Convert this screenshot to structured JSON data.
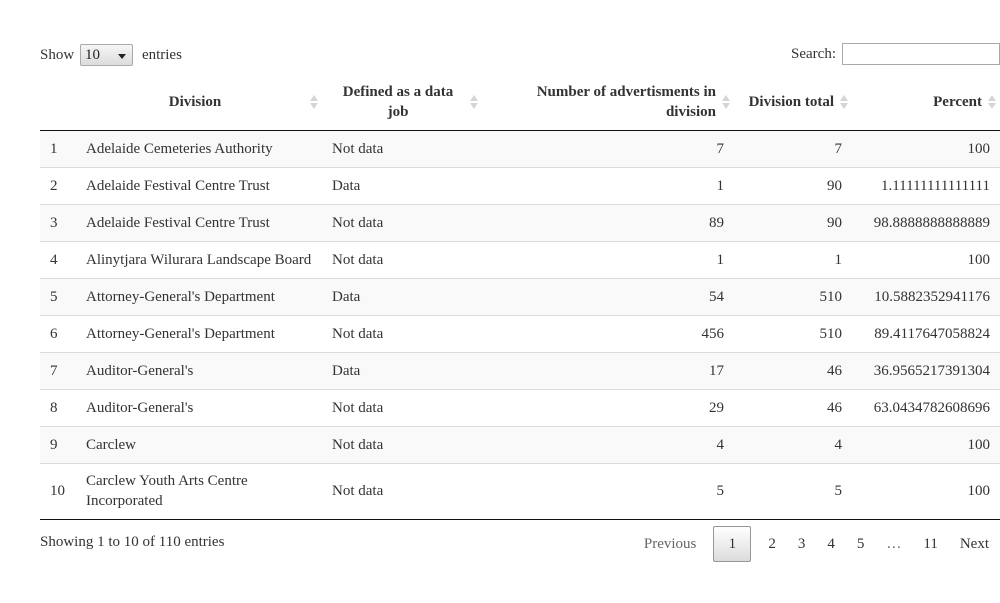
{
  "length_menu": {
    "prefix": "Show",
    "value": "10",
    "suffix": "entries"
  },
  "search": {
    "label": "Search:",
    "value": ""
  },
  "columns": [
    {
      "label": "",
      "align": "c"
    },
    {
      "label": "Division",
      "align": "c"
    },
    {
      "label": "Defined as a data job",
      "align": "c"
    },
    {
      "label": "Number of advertisments in division",
      "align": "r"
    },
    {
      "label": "Division total",
      "align": "r"
    },
    {
      "label": "Percent",
      "align": "r"
    }
  ],
  "rows": [
    [
      "1",
      "Adelaide Cemeteries Authority",
      "Not data",
      "7",
      "7",
      "100"
    ],
    [
      "2",
      "Adelaide Festival Centre Trust",
      "Data",
      "1",
      "90",
      "1.11111111111111"
    ],
    [
      "3",
      "Adelaide Festival Centre Trust",
      "Not data",
      "89",
      "90",
      "98.8888888888889"
    ],
    [
      "4",
      "Alinytjara Wilurara Landscape Board",
      "Not data",
      "1",
      "1",
      "100"
    ],
    [
      "5",
      "Attorney-General's Department",
      "Data",
      "54",
      "510",
      "10.5882352941176"
    ],
    [
      "6",
      "Attorney-General's Department",
      "Not data",
      "456",
      "510",
      "89.4117647058824"
    ],
    [
      "7",
      "Auditor-General's",
      "Data",
      "17",
      "46",
      "36.9565217391304"
    ],
    [
      "8",
      "Auditor-General's",
      "Not data",
      "29",
      "46",
      "63.0434782608696"
    ],
    [
      "9",
      "Carclew",
      "Not data",
      "4",
      "4",
      "100"
    ],
    [
      "10",
      "Carclew Youth Arts Centre Incorporated",
      "Not data",
      "5",
      "5",
      "100"
    ]
  ],
  "info": "Showing 1 to 10 of 110 entries",
  "pagination": {
    "previous": "Previous",
    "pages": [
      "1",
      "2",
      "3",
      "4",
      "5"
    ],
    "ellipsis": "…",
    "last": "11",
    "next": "Next",
    "current": "1"
  }
}
